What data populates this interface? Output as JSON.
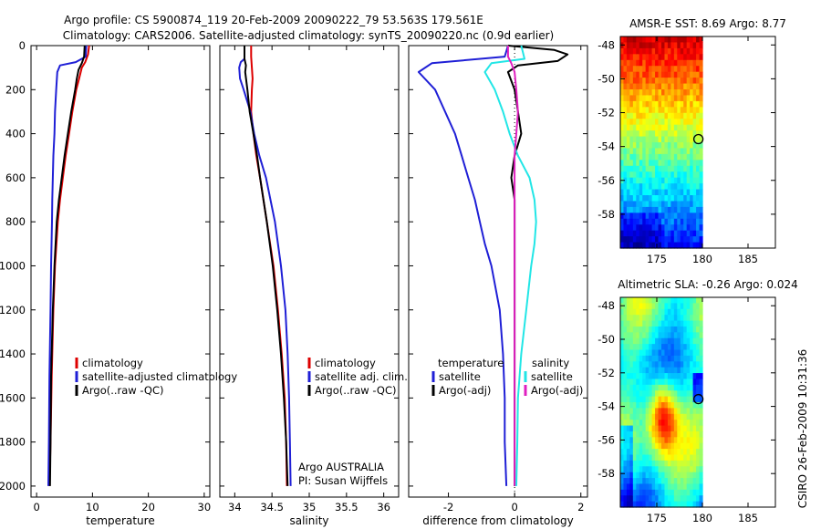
{
  "title": {
    "line1": "Argo profile: CS 5900874_119 20-Feb-2009 20090222_79 53.563S 179.561E",
    "line2": "Climatology: CARS2006. Satellite-adjusted climatology: synTS_20090220.nc (0.9d earlier)"
  },
  "side_label": "CSIRO 26-Feb-2009 10:31:36",
  "colors": {
    "climatology": "#dd0000",
    "satellite": "#1f1fd6",
    "argo": "#000000",
    "satellite_salinity_diff": "#22e6e6",
    "argo_salinity_diff": "#e020c0"
  },
  "chart_data": [
    {
      "id": "temperature",
      "type": "line",
      "xlabel": "temperature",
      "ylabel": "",
      "xlim": [
        -1,
        31
      ],
      "ylim": [
        2050,
        0
      ],
      "x_ticks": [
        0,
        10,
        20,
        30
      ],
      "y_ticks": [
        0,
        200,
        400,
        600,
        800,
        1000,
        1200,
        1400,
        1600,
        1800,
        2000
      ],
      "legend_location": "lower-right",
      "legend": [
        "climatology",
        "satellite-adjusted climatology",
        "Argo(..raw -QC)"
      ],
      "series": [
        {
          "name": "climatology",
          "color": "#dd0000",
          "y": [
            0,
            40,
            75,
            100,
            150,
            200,
            300,
            400,
            500,
            600,
            700,
            800,
            1000,
            1200,
            1500,
            1800,
            2000
          ],
          "x": [
            9.4,
            9.2,
            8.7,
            8.1,
            7.6,
            7.1,
            6.4,
            5.8,
            5.2,
            4.7,
            4.2,
            3.8,
            3.3,
            3.0,
            2.7,
            2.5,
            2.3
          ]
        },
        {
          "name": "satellite-adjusted climatology",
          "color": "#1f1fd6",
          "y": [
            0,
            50,
            75,
            90,
            120,
            200,
            300,
            400,
            500,
            600,
            700,
            800,
            1000,
            1200,
            1500,
            1800,
            2000
          ],
          "x": [
            8.9,
            8.8,
            7.0,
            4.2,
            3.7,
            3.5,
            3.3,
            3.2,
            3.0,
            2.9,
            2.8,
            2.75,
            2.6,
            2.5,
            2.3,
            2.2,
            2.1
          ]
        },
        {
          "name": "Argo(..raw -QC)",
          "color": "#000000",
          "y": [
            0,
            50,
            80,
            110,
            150,
            200,
            300,
            400,
            500,
            600,
            700,
            800,
            1000,
            1200,
            1500,
            1800,
            2000
          ],
          "x": [
            8.6,
            8.5,
            8.1,
            7.5,
            7.2,
            6.9,
            6.2,
            5.6,
            5.0,
            4.5,
            4.0,
            3.6,
            3.2,
            2.9,
            2.6,
            2.5,
            2.4
          ]
        }
      ]
    },
    {
      "id": "salinity",
      "type": "line",
      "xlabel": "salinity",
      "ylabel": "",
      "xlim": [
        33.8,
        36.2
      ],
      "ylim": [
        2050,
        0
      ],
      "x_ticks": [
        34,
        34.5,
        35,
        35.5,
        36
      ],
      "legend_location": "lower-right",
      "legend": [
        "climatology",
        "satellite adj. clim.",
        "Argo(..raw -QC)"
      ],
      "annotations": [
        "Argo AUSTRALIA",
        "PI: Susan Wijffels"
      ],
      "series": [
        {
          "name": "climatology",
          "color": "#dd0000",
          "y": [
            0,
            50,
            100,
            150,
            200,
            300,
            400,
            500,
            600,
            800,
            1000,
            1200,
            1400,
            1600,
            1800,
            2000
          ],
          "x": [
            34.22,
            34.22,
            34.23,
            34.24,
            34.23,
            34.22,
            34.25,
            34.29,
            34.34,
            34.43,
            34.52,
            34.58,
            34.63,
            34.67,
            34.69,
            34.7
          ]
        },
        {
          "name": "satellite adj. clim.",
          "color": "#1f1fd6",
          "y": [
            0,
            60,
            75,
            100,
            150,
            200,
            300,
            400,
            500,
            600,
            800,
            1000,
            1200,
            1400,
            1600,
            1800,
            2000
          ],
          "x": [
            34.13,
            34.13,
            34.08,
            34.06,
            34.07,
            34.12,
            34.21,
            34.26,
            34.33,
            34.42,
            34.54,
            34.62,
            34.68,
            34.71,
            34.73,
            34.74,
            34.75
          ]
        },
        {
          "name": "Argo(..raw -QC)",
          "color": "#000000",
          "y": [
            0,
            60,
            90,
            120,
            200,
            300,
            400,
            500,
            600,
            800,
            1000,
            1200,
            1400,
            1600,
            1800,
            2000
          ],
          "x": [
            34.13,
            34.13,
            34.15,
            34.14,
            34.17,
            34.2,
            34.25,
            34.3,
            34.34,
            34.43,
            34.51,
            34.57,
            34.62,
            34.66,
            34.69,
            34.71
          ]
        }
      ]
    },
    {
      "id": "difference",
      "type": "line",
      "xlabel": "difference from climatology",
      "ylabel": "",
      "xlim": [
        -3.2,
        2.2
      ],
      "ylim": [
        2050,
        0
      ],
      "x_ticks": [
        -2,
        0,
        2
      ],
      "legend_location": "lower-center",
      "legend_headers": [
        "temperature",
        "salinity"
      ],
      "legend": [
        "satellite",
        "Argo(-adj)",
        "satellite",
        "Argo(-adj)"
      ],
      "series": [
        {
          "name": "temperature satellite",
          "color": "#1f1fd6",
          "y": [
            0,
            50,
            80,
            120,
            200,
            300,
            400,
            500,
            600,
            700,
            800,
            900,
            1000,
            1200,
            1400,
            1600,
            1800,
            2000
          ],
          "x": [
            -0.2,
            -0.3,
            -2.5,
            -2.9,
            -2.4,
            -2.1,
            -1.8,
            -1.6,
            -1.4,
            -1.2,
            -1.05,
            -0.9,
            -0.7,
            -0.45,
            -0.35,
            -0.3,
            -0.3,
            -0.25
          ]
        },
        {
          "name": "temperature Argo(-adj)",
          "color": "#000000",
          "y": [
            0,
            20,
            40,
            70,
            90,
            120,
            200,
            300,
            400,
            500,
            600,
            700,
            800,
            1000,
            1500,
            2000
          ],
          "x": [
            -0.2,
            1.2,
            1.6,
            1.3,
            0.1,
            -0.2,
            0.0,
            0.1,
            0.2,
            0.0,
            -0.1,
            0.0,
            0.0,
            0.0,
            0.0,
            0.0
          ]
        },
        {
          "name": "salinity satellite",
          "color": "#22e6e6",
          "y": [
            0,
            60,
            80,
            120,
            200,
            300,
            400,
            500,
            600,
            700,
            800,
            900,
            1000,
            1200,
            1400,
            1600,
            1800,
            2000
          ],
          "x": [
            0.2,
            0.3,
            -0.7,
            -0.9,
            -0.6,
            -0.35,
            -0.15,
            0.1,
            0.45,
            0.6,
            0.65,
            0.6,
            0.5,
            0.35,
            0.2,
            0.1,
            0.08,
            0.05
          ]
        },
        {
          "name": "salinity Argo(-adj)",
          "color": "#e020c0",
          "y": [
            0,
            50,
            80,
            120,
            200,
            300,
            400,
            500,
            600,
            800,
            1000,
            1500,
            2000
          ],
          "x": [
            -0.2,
            -0.2,
            -0.1,
            0.0,
            0.05,
            0.1,
            0.05,
            0.0,
            0.0,
            0.0,
            0.0,
            0.0,
            0.0
          ]
        }
      ]
    },
    {
      "id": "sst_map",
      "type": "heatmap",
      "title": "AMSR-E SST: 8.69  Argo: 8.77",
      "xlim": [
        171,
        188
      ],
      "ylim": [
        -60,
        -47.5
      ],
      "x_ticks": [
        175,
        180,
        185
      ],
      "y_ticks": [
        -48,
        -50,
        -52,
        -54,
        -56,
        -58
      ],
      "data_extent_x": [
        171,
        180
      ],
      "float_position": [
        179.561,
        -53.563
      ]
    },
    {
      "id": "sla_map",
      "type": "heatmap",
      "title": "Altimetric SLA: -0.26  Argo: 0.024",
      "xlim": [
        171,
        188
      ],
      "ylim": [
        -60,
        -47.5
      ],
      "x_ticks": [
        175,
        180,
        185
      ],
      "y_ticks": [
        -48,
        -50,
        -52,
        -54,
        -56,
        -58
      ],
      "data_extent_x": [
        171,
        180
      ],
      "float_position": [
        179.561,
        -53.563
      ]
    }
  ]
}
